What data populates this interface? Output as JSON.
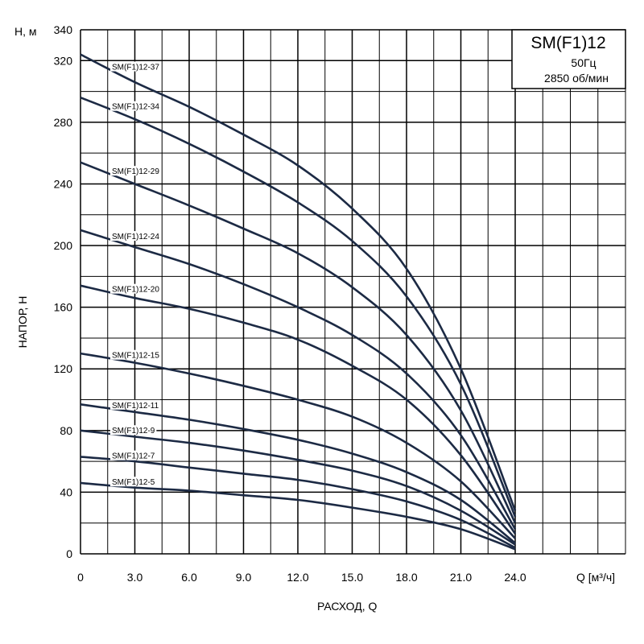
{
  "chart_data": {
    "type": "line",
    "title": "SM(F1)12",
    "subtitle_lines": [
      "50Гц",
      "2850 об/мин"
    ],
    "xlabel": "РАСХОД, Q",
    "ylabel": "НАПОР, Н",
    "x_unit_label": "Q [м³/ч]",
    "y_unit_label": "Н, м",
    "xlim": [
      0,
      24
    ],
    "ylim": [
      0,
      340
    ],
    "x_ticks": [
      "0",
      "3.0",
      "6.0",
      "9.0",
      "12.0",
      "15.0",
      "18.0",
      "21.0",
      "24.0"
    ],
    "y_ticks": [
      "0",
      "40",
      "80",
      "120",
      "160",
      "200",
      "240",
      "280",
      "320",
      "340"
    ],
    "grid": true,
    "series": [
      {
        "name": "SM(F1)12-37",
        "x": [
          0,
          3,
          6,
          9,
          12,
          15,
          18,
          21,
          24
        ],
        "y": [
          324,
          306,
          290,
          272,
          252,
          224,
          185,
          120,
          28
        ]
      },
      {
        "name": "SM(F1)12-34",
        "x": [
          0,
          3,
          6,
          9,
          12,
          15,
          18,
          21,
          24
        ],
        "y": [
          296,
          282,
          266,
          248,
          228,
          203,
          167,
          110,
          24
        ]
      },
      {
        "name": "SM(F1)12-29",
        "x": [
          0,
          3,
          6,
          9,
          12,
          15,
          18,
          21,
          24
        ],
        "y": [
          254,
          240,
          226,
          211,
          195,
          173,
          142,
          93,
          20
        ]
      },
      {
        "name": "SM(F1)12-24",
        "x": [
          0,
          3,
          6,
          9,
          12,
          15,
          18,
          21,
          24
        ],
        "y": [
          210,
          199,
          188,
          175,
          160,
          142,
          117,
          77,
          16
        ]
      },
      {
        "name": "SM(F1)12-20",
        "x": [
          0,
          3,
          6,
          9,
          12,
          15,
          18,
          21,
          24
        ],
        "y": [
          174,
          166,
          159,
          150,
          139,
          122,
          100,
          64,
          13
        ]
      },
      {
        "name": "SM(F1)12-15",
        "x": [
          0,
          3,
          6,
          9,
          12,
          15,
          18,
          21,
          24
        ],
        "y": [
          130,
          124,
          117,
          109,
          100,
          89,
          72,
          47,
          10
        ]
      },
      {
        "name": "SM(F1)12-11",
        "x": [
          0,
          3,
          6,
          9,
          12,
          15,
          18,
          21,
          24
        ],
        "y": [
          97,
          92,
          87,
          81,
          74,
          65,
          53,
          35,
          7
        ]
      },
      {
        "name": "SM(F1)12-9",
        "x": [
          0,
          3,
          6,
          9,
          12,
          15,
          18,
          21,
          24
        ],
        "y": [
          80,
          76,
          72,
          67,
          61,
          54,
          44,
          28,
          6
        ]
      },
      {
        "name": "SM(F1)12-7",
        "x": [
          0,
          3,
          6,
          9,
          12,
          15,
          18,
          21,
          24
        ],
        "y": [
          63,
          60,
          56,
          52,
          48,
          42,
          34,
          22,
          4
        ]
      },
      {
        "name": "SM(F1)12-5",
        "x": [
          0,
          3,
          6,
          9,
          12,
          15,
          18,
          21,
          24
        ],
        "y": [
          46,
          43,
          41,
          38,
          35,
          30,
          24,
          16,
          3
        ]
      }
    ]
  }
}
